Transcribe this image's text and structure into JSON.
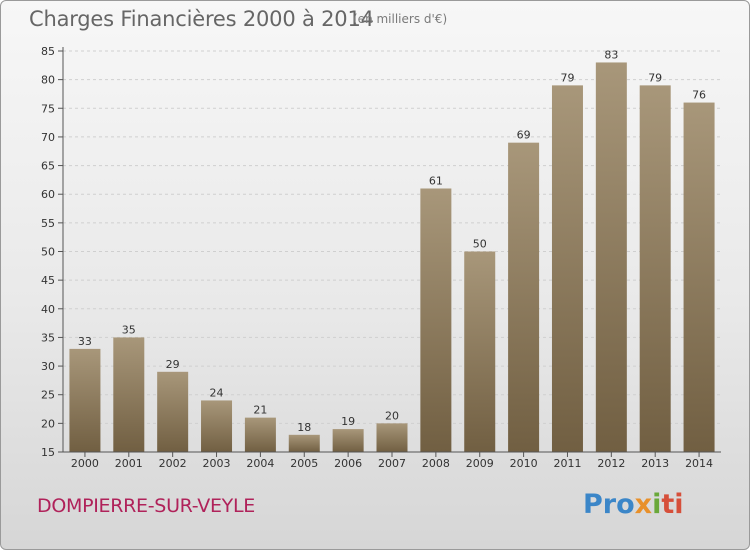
{
  "header": {
    "title": "Charges Financières 2000 à 2014",
    "subtitle": "(en milliers d'€)"
  },
  "footer": {
    "commune": "DOMPIERRE-SUR-VEYLE",
    "brand": "Proxiti"
  },
  "colors": {
    "bar_top": "#a8977a",
    "bar_bottom": "#715f42",
    "grid": "#cfcfcf",
    "commune_text": "#b0225a"
  },
  "chart_data": {
    "type": "bar",
    "title": "Charges Financières 2000 à 2014",
    "subtitle": "(en milliers d'€)",
    "categories": [
      "2000",
      "2001",
      "2002",
      "2003",
      "2004",
      "2005",
      "2006",
      "2007",
      "2008",
      "2009",
      "2010",
      "2011",
      "2012",
      "2013",
      "2014"
    ],
    "values": [
      33,
      35,
      29,
      24,
      21,
      18,
      19,
      20,
      61,
      50,
      69,
      79,
      83,
      79,
      76
    ],
    "ylim": [
      15,
      85
    ],
    "yticks": [
      15,
      20,
      25,
      30,
      35,
      40,
      45,
      50,
      55,
      60,
      65,
      70,
      75,
      80,
      85
    ],
    "grid": true,
    "xlabel": "",
    "ylabel": ""
  }
}
